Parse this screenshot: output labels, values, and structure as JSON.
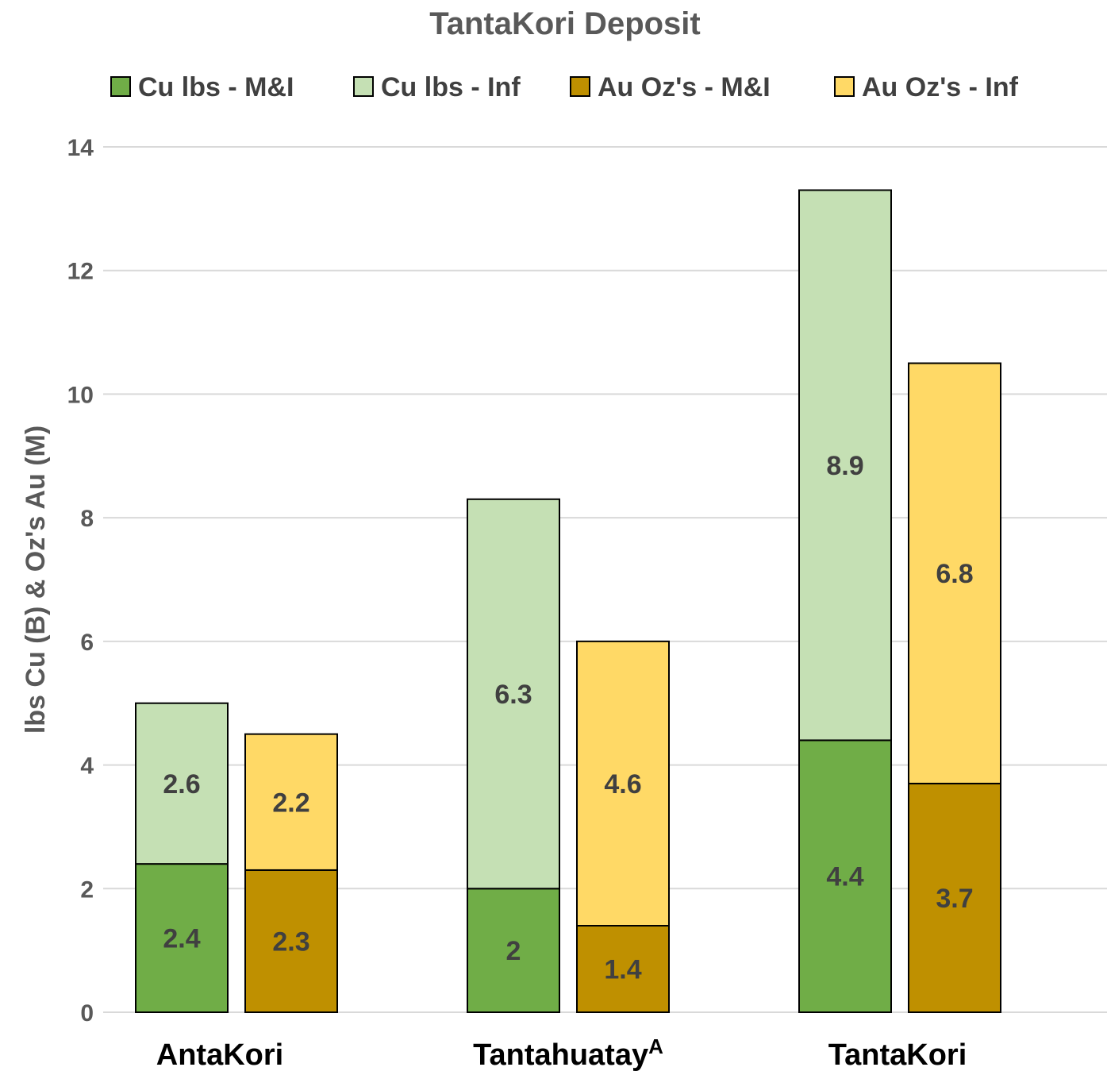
{
  "chart_data": {
    "type": "bar",
    "stacked": true,
    "title": "TantaKori Deposit",
    "ylabel": "lbs Cu (B) & Oz's Au (M)",
    "xlabel": "",
    "ylim": [
      0,
      14
    ],
    "yticks": [
      0,
      2,
      4,
      6,
      8,
      10,
      12,
      14
    ],
    "grid": true,
    "legend_position": "top",
    "categories": [
      {
        "label": "AntaKori",
        "superscript": ""
      },
      {
        "label": "Tantahuatay",
        "superscript": "A"
      },
      {
        "label": "TantaKori",
        "superscript": ""
      }
    ],
    "stacks": [
      {
        "name": "Cu",
        "segments": [
          "Cu lbs - M&I",
          "Cu lbs - Inf"
        ]
      },
      {
        "name": "Au",
        "segments": [
          "Au Oz's - M&I",
          "Au Oz's - Inf"
        ]
      }
    ],
    "series": [
      {
        "name": "Cu lbs - M&I",
        "stack": "Cu",
        "color": "#70ad47",
        "values": [
          2.4,
          2,
          4.4
        ],
        "labels": [
          "2.4",
          "2",
          "4.4"
        ]
      },
      {
        "name": "Cu lbs - Inf",
        "stack": "Cu",
        "color": "#c5e0b4",
        "values": [
          2.6,
          6.3,
          8.9
        ],
        "labels": [
          "2.6",
          "6.3",
          "8.9"
        ]
      },
      {
        "name": "Au Oz's - M&I",
        "stack": "Au",
        "color": "#bf9000",
        "values": [
          2.3,
          1.4,
          3.7
        ],
        "labels": [
          "2.3",
          "1.4",
          "3.7"
        ]
      },
      {
        "name": "Au Oz's - Inf",
        "stack": "Au",
        "color": "#ffd966",
        "values": [
          2.2,
          4.6,
          6.8
        ],
        "labels": [
          "2.2",
          "4.6",
          "6.8"
        ]
      }
    ],
    "stack_totals_shown": [
      {
        "stack": "Au",
        "category": "AntaKori",
        "visual_total": 4.5
      }
    ]
  }
}
